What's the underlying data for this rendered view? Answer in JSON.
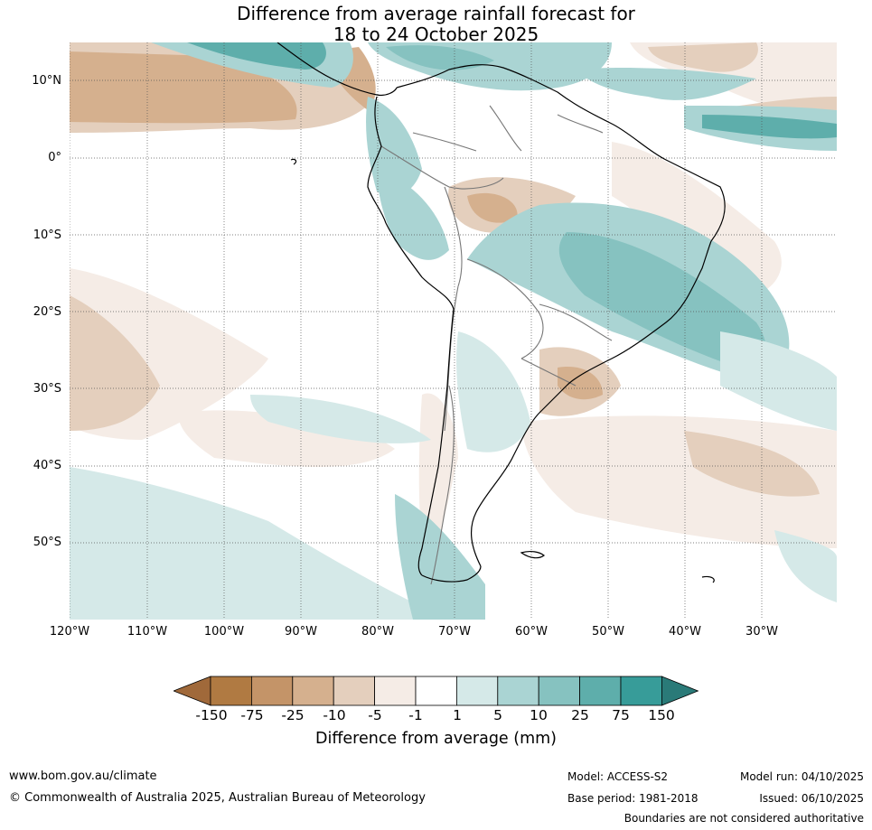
{
  "title": {
    "line1": "Difference from average rainfall forecast for",
    "line2": "18 to 24 October 2025"
  },
  "lat_labels": [
    "10°N",
    "0°",
    "10°S",
    "20°S",
    "30°S",
    "40°S",
    "50°S"
  ],
  "lon_labels": [
    "120°W",
    "110°W",
    "100°W",
    "90°W",
    "80°W",
    "70°W",
    "60°W",
    "50°W",
    "40°W",
    "30°W"
  ],
  "legend": {
    "title": "Difference from average (mm)",
    "tick_labels": [
      "-150",
      "-75",
      "-25",
      "-10",
      "-5",
      "-1",
      "1",
      "5",
      "10",
      "25",
      "75",
      "150"
    ],
    "colors": [
      "#a0693a",
      "#b07a42",
      "#c49468",
      "#d5b08e",
      "#e4cfbd",
      "#f5ece6",
      "#ffffff",
      "#d5e9e8",
      "#aad4d3",
      "#86c2c0",
      "#5eaeab",
      "#379c99",
      "#2a7a78"
    ]
  },
  "footer": {
    "website": "www.bom.gov.au/climate",
    "copyright": "© Commonwealth of Australia 2025, Australian Bureau of Meteorology",
    "model": "Model: ACCESS-S2",
    "base_period": "Base period: 1981-2018",
    "model_run": "Model run: 04/10/2025",
    "issued": "Issued: 06/10/2025",
    "disclaimer": "Boundaries are not considered authoritative"
  }
}
